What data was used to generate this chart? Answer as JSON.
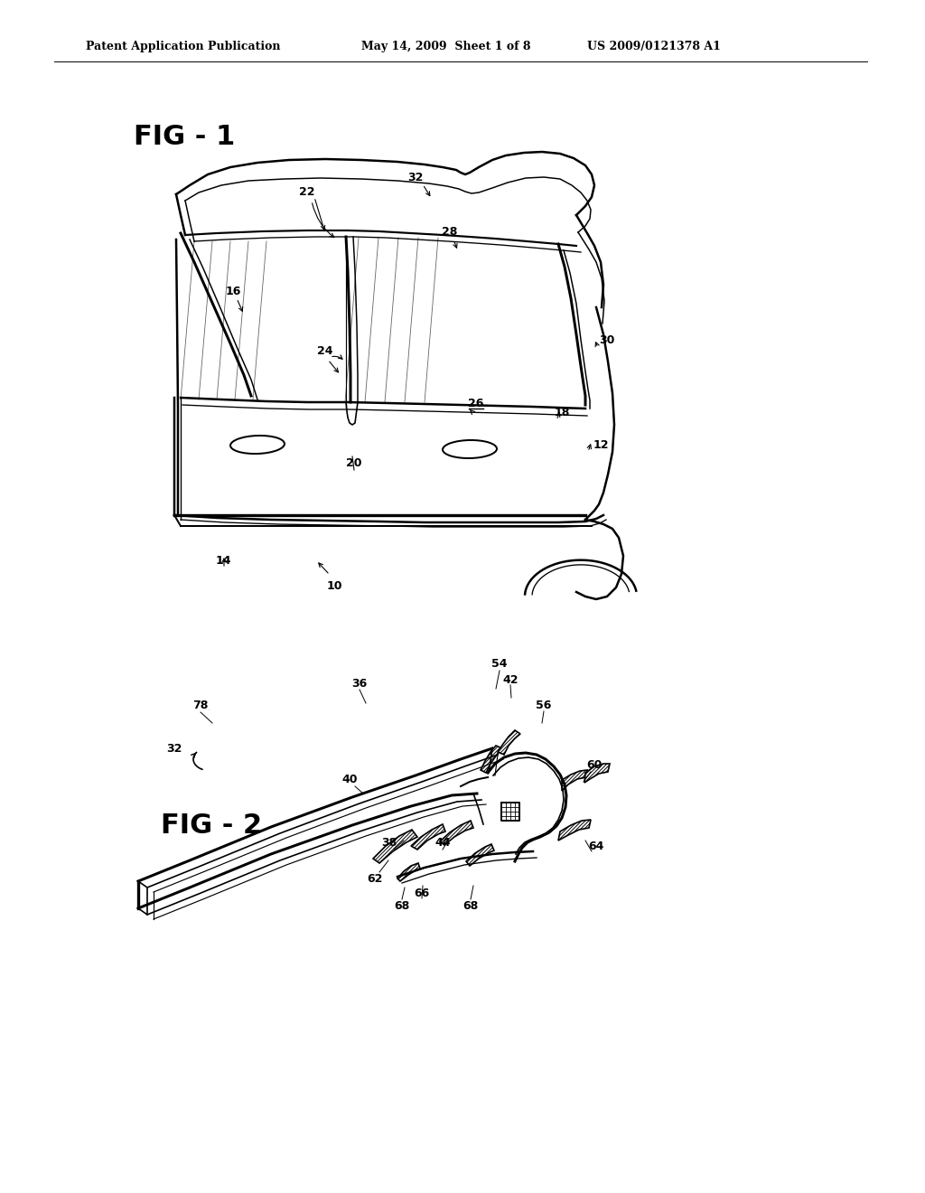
{
  "bg_color": "#ffffff",
  "header_text1": "Patent Application Publication",
  "header_text2": "May 14, 2009  Sheet 1 of 8",
  "header_text3": "US 2009/0121378 A1",
  "fig1_label": "FIG - 1",
  "fig2_label": "FIG - 2",
  "text_color": "#000000",
  "line_color": "#000000",
  "line_width": 1.2
}
